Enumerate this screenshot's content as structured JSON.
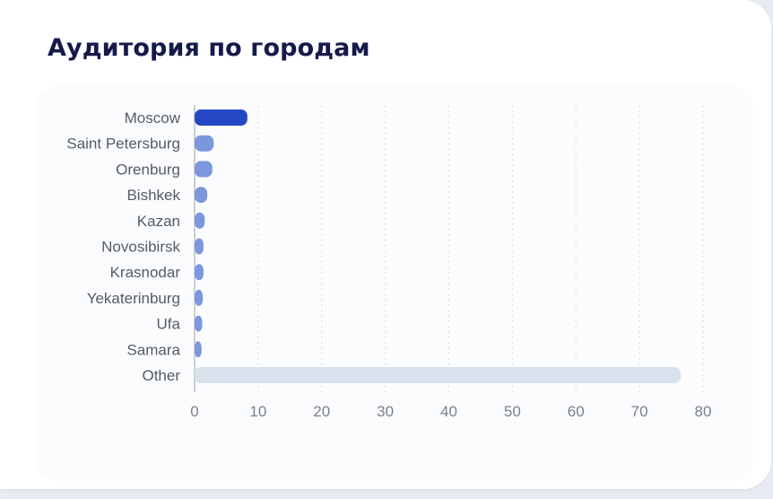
{
  "card": {
    "title": "Аудитория по городам"
  },
  "colors": {
    "primary_bar": "#2448c4",
    "secondary_bar": "#7d97dd",
    "other_bar": "#d9e2ec",
    "grid": "#dcdfe6",
    "axis": "#b9bec8"
  },
  "chart_data": {
    "type": "bar",
    "orientation": "horizontal",
    "title": "Аудитория по городам",
    "categories": [
      "Moscow",
      "Saint Petersburg",
      "Orenburg",
      "Bishkek",
      "Kazan",
      "Novosibirsk",
      "Krasnodar",
      "Yekaterinburg",
      "Ufa",
      "Samara",
      "Other"
    ],
    "values": [
      8.3,
      3.0,
      2.8,
      2.0,
      1.6,
      1.4,
      1.4,
      1.3,
      1.2,
      1.1,
      76.5
    ],
    "xlim": [
      0,
      80
    ],
    "xticks": [
      0,
      10,
      20,
      30,
      40,
      50,
      60,
      70,
      80
    ],
    "xlabel": "",
    "ylabel": "",
    "grid": "vertical dashed",
    "legend": "none"
  }
}
